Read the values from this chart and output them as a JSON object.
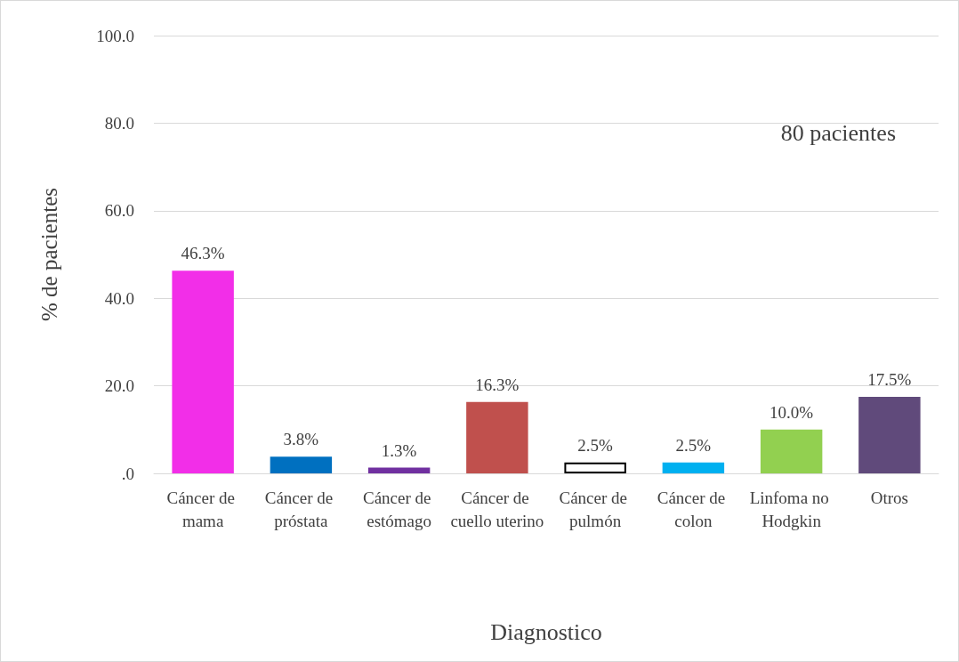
{
  "chart_data": {
    "type": "bar",
    "xlabel": "Diagnostico",
    "ylabel": "% de pacientes",
    "categories": [
      "Cáncer de mama",
      "Cáncer de próstata",
      "Cáncer de estómago",
      "Cáncer de cuello uterino",
      "Cáncer de pulmón",
      "Cáncer de colon",
      "Linfoma no Hodgkin",
      "Otros"
    ],
    "values": [
      46.3,
      3.8,
      1.3,
      16.3,
      2.5,
      2.5,
      10.0,
      17.5
    ],
    "colors": [
      "#f22ee8",
      "#0070c0",
      "#7030a0",
      "#c0504d",
      "#ffffff",
      "#00b0f0",
      "#92d050",
      "#604a7b"
    ],
    "value_labels": [
      "46.3%",
      "3.8%",
      "1.3%",
      "16.3%",
      "2.5%",
      "2.5%",
      "10.0%",
      "17.5%"
    ],
    "ylim": [
      0,
      100
    ],
    "yticks": [
      {
        "value": 0,
        "label": ".0"
      },
      {
        "value": 20,
        "label": "20.0"
      },
      {
        "value": 40,
        "label": "40.0"
      },
      {
        "value": 60,
        "label": "60.0"
      },
      {
        "value": 80,
        "label": "80.0"
      },
      {
        "value": 100,
        "label": "100.0"
      }
    ],
    "grid": "y",
    "annotations": [
      "80 pacientes"
    ]
  }
}
